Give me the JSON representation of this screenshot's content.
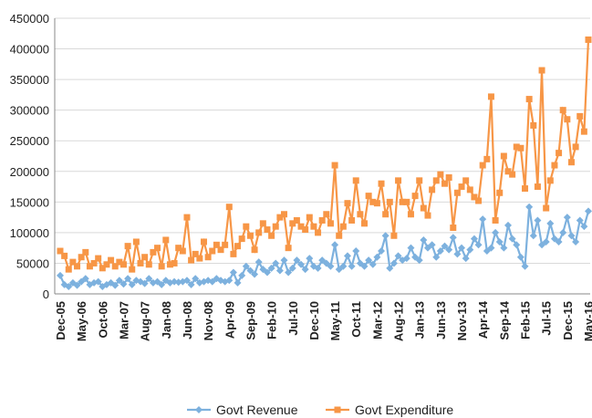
{
  "chart_data": {
    "type": "line",
    "categories": [
      "Dec-05",
      null,
      null,
      null,
      null,
      "May-06",
      null,
      null,
      null,
      null,
      "Oct-06",
      null,
      null,
      null,
      null,
      "Mar-07",
      null,
      null,
      null,
      null,
      "Aug-07",
      null,
      null,
      null,
      null,
      "Jan-08",
      null,
      null,
      null,
      null,
      "Jun-08",
      null,
      null,
      null,
      null,
      "Nov-08",
      null,
      null,
      null,
      null,
      "Apr-09",
      null,
      null,
      null,
      null,
      "Sep-09",
      null,
      null,
      null,
      null,
      "Feb-10",
      null,
      null,
      null,
      null,
      "Jul-10",
      null,
      null,
      null,
      null,
      "Dec-10",
      null,
      null,
      null,
      null,
      "May-11",
      null,
      null,
      null,
      null,
      "Oct-11",
      null,
      null,
      null,
      null,
      "Mar-12",
      null,
      null,
      null,
      null,
      "Aug-12",
      null,
      null,
      null,
      null,
      "Jan-13",
      null,
      null,
      null,
      null,
      "Jun-13",
      null,
      null,
      null,
      null,
      "Nov-13",
      null,
      null,
      null,
      null,
      "Apr-14",
      null,
      null,
      null,
      null,
      "Sep-14",
      null,
      null,
      null,
      null,
      "Feb-15",
      null,
      null,
      null,
      null,
      "Jul-15",
      null,
      null,
      null,
      null,
      "Dec-15",
      null,
      null,
      null,
      null,
      "May-16"
    ],
    "series": [
      {
        "name": "Govt Revenue",
        "color": "#7db1de",
        "marker": "diamond",
        "values": [
          30000,
          15000,
          12000,
          18000,
          14000,
          20000,
          25000,
          15000,
          18000,
          20000,
          12000,
          15000,
          18000,
          14000,
          22000,
          16000,
          25000,
          15000,
          22000,
          20000,
          17000,
          25000,
          18000,
          20000,
          15000,
          22000,
          18000,
          20000,
          19000,
          20000,
          22000,
          15000,
          25000,
          18000,
          20000,
          22000,
          20000,
          25000,
          22000,
          20000,
          22000,
          35000,
          18000,
          30000,
          45000,
          38000,
          32000,
          52000,
          40000,
          35000,
          42000,
          50000,
          38000,
          55000,
          35000,
          42000,
          55000,
          48000,
          40000,
          58000,
          45000,
          42000,
          55000,
          50000,
          45000,
          80000,
          40000,
          45000,
          62000,
          45000,
          70000,
          50000,
          45000,
          55000,
          48000,
          60000,
          70000,
          95000,
          42000,
          50000,
          62000,
          55000,
          58000,
          75000,
          60000,
          55000,
          88000,
          75000,
          80000,
          60000,
          70000,
          78000,
          72000,
          92000,
          65000,
          75000,
          58000,
          72000,
          90000,
          80000,
          122000,
          70000,
          75000,
          100000,
          85000,
          75000,
          112000,
          90000,
          80000,
          60000,
          45000,
          142000,
          95000,
          120000,
          80000,
          85000,
          115000,
          90000,
          85000,
          100000,
          125000,
          95000,
          85000,
          120000,
          110000,
          135000
        ]
      },
      {
        "name": "Govt Expenditure",
        "color": "#f79646",
        "marker": "square",
        "values": [
          70000,
          62000,
          40000,
          52000,
          45000,
          60000,
          68000,
          45000,
          50000,
          58000,
          42000,
          48000,
          55000,
          45000,
          52000,
          48000,
          78000,
          40000,
          85000,
          50000,
          60000,
          48000,
          68000,
          75000,
          45000,
          88000,
          48000,
          50000,
          75000,
          70000,
          125000,
          55000,
          65000,
          58000,
          85000,
          60000,
          70000,
          80000,
          72000,
          80000,
          142000,
          65000,
          78000,
          90000,
          110000,
          95000,
          72000,
          100000,
          115000,
          105000,
          95000,
          110000,
          125000,
          130000,
          75000,
          115000,
          120000,
          110000,
          105000,
          125000,
          110000,
          100000,
          120000,
          130000,
          115000,
          210000,
          95000,
          110000,
          148000,
          120000,
          185000,
          130000,
          115000,
          160000,
          150000,
          148000,
          180000,
          130000,
          150000,
          95000,
          185000,
          150000,
          150000,
          130000,
          160000,
          185000,
          140000,
          128000,
          170000,
          185000,
          195000,
          180000,
          190000,
          108000,
          165000,
          175000,
          185000,
          170000,
          158000,
          152000,
          210000,
          220000,
          322000,
          120000,
          165000,
          225000,
          200000,
          195000,
          240000,
          238000,
          172000,
          318000,
          275000,
          175000,
          365000,
          140000,
          185000,
          210000,
          230000,
          300000,
          285000,
          215000,
          240000,
          290000,
          265000,
          415000
        ]
      }
    ],
    "ylim": [
      0,
      450000
    ],
    "yticks": [
      0,
      50000,
      100000,
      150000,
      200000,
      250000,
      300000,
      350000,
      400000,
      450000
    ],
    "grid": true,
    "legend": "bottom"
  }
}
